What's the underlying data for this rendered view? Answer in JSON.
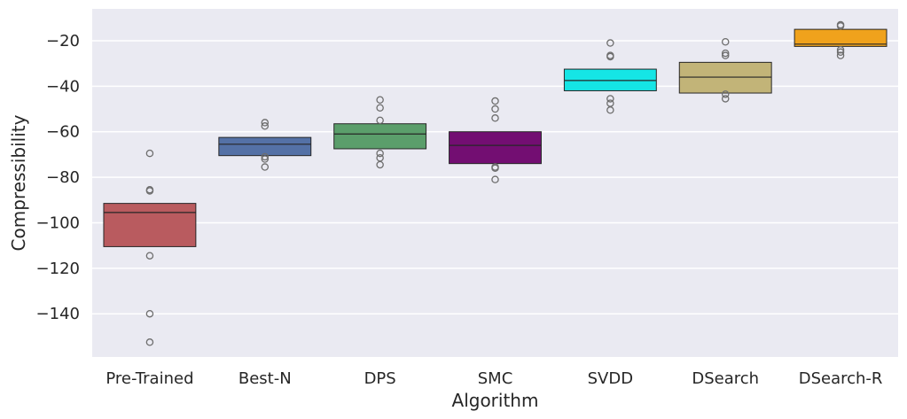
{
  "chart_data": {
    "type": "boxplot",
    "title": "",
    "xlabel": "Algorithm",
    "ylabel": "Compressibility",
    "ylim": [
      -159,
      -6
    ],
    "yticks": [
      -20,
      -40,
      -60,
      -80,
      -100,
      -120,
      -140
    ],
    "ytick_labels": [
      "−20",
      "−40",
      "−60",
      "−80",
      "−100",
      "−120",
      "−140"
    ],
    "grid": true,
    "categories": [
      "Pre-Trained",
      "Best-N",
      "DPS",
      "SMC",
      "SVDD",
      "DSearch",
      "DSearch-R"
    ],
    "boxes": [
      {
        "name": "Pre-Trained",
        "color": "#b95b5f",
        "q1": -110.5,
        "median": -95.5,
        "q3": -91.5,
        "outliers": [
          -69.5,
          -85.5,
          -86,
          -114.5,
          -140,
          -152.5
        ]
      },
      {
        "name": "Best-N",
        "color": "#5471a6",
        "q1": -70.5,
        "median": -65.5,
        "q3": -62.5,
        "outliers": [
          -56,
          -57.5,
          -71,
          -72,
          -75.5
        ]
      },
      {
        "name": "DPS",
        "color": "#5b9e6b",
        "q1": -67.5,
        "median": -61,
        "q3": -56.5,
        "outliers": [
          -46,
          -49.5,
          -55,
          -69.5,
          -71.5,
          -74.5
        ]
      },
      {
        "name": "SMC",
        "color": "#730e72",
        "q1": -74,
        "median": -66,
        "q3": -60,
        "outliers": [
          -46.5,
          -50,
          -54,
          -75.5,
          -76,
          -81
        ]
      },
      {
        "name": "SVDD",
        "color": "#15e5e5",
        "q1": -42,
        "median": -37.5,
        "q3": -32.5,
        "outliers": [
          -21,
          -26.5,
          -27,
          -45.5,
          -47.5,
          -50.5
        ]
      },
      {
        "name": "DSearch",
        "color": "#c2b478",
        "q1": -43,
        "median": -36,
        "q3": -29.5,
        "outliers": [
          -20.5,
          -25.5,
          -26.5,
          -43.5,
          -45.5
        ]
      },
      {
        "name": "DSearch-R",
        "color": "#f0a21c",
        "q1": -22.5,
        "median": -21.5,
        "q3": -15,
        "outliers": [
          -13,
          -13.5,
          -24,
          -25,
          -26.5
        ]
      }
    ]
  }
}
